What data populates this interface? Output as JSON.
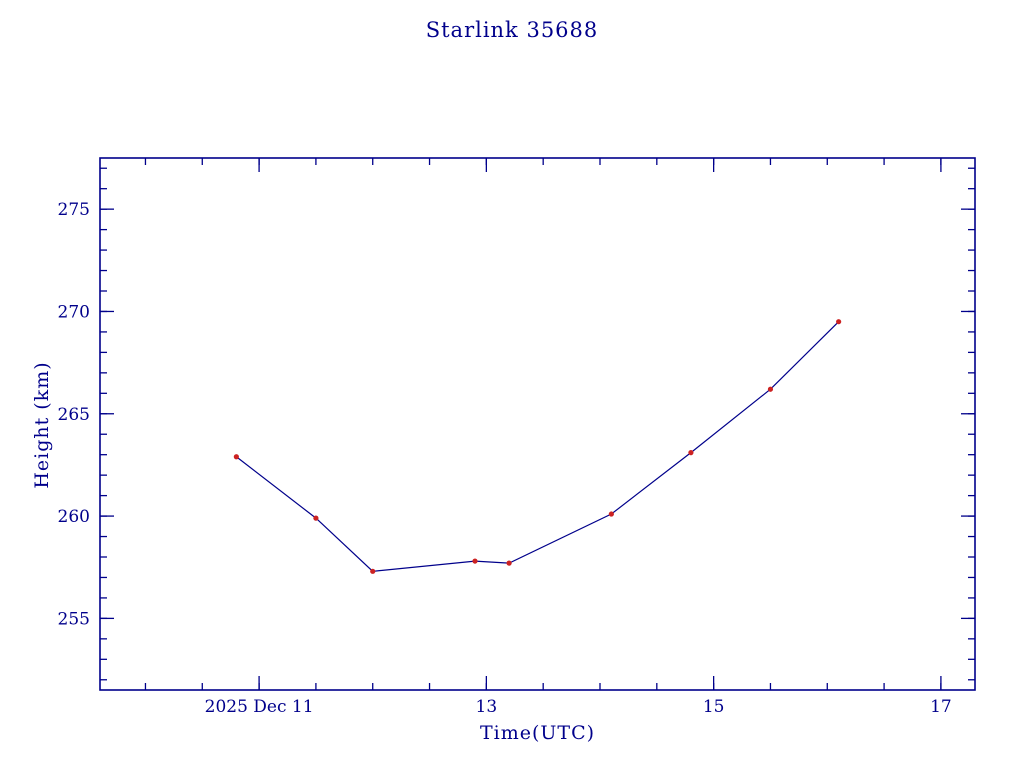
{
  "title": "Starlink 35688",
  "colors": {
    "axis": "#00008b",
    "line": "#00008b",
    "marker": "#cc2222",
    "background": "#ffffff"
  },
  "chart_data": {
    "type": "line",
    "title": "Starlink 35688",
    "xlabel": "Time(UTC)",
    "ylabel": "Height (km)",
    "x": [
      10.8,
      11.5,
      12.0,
      12.9,
      13.2,
      14.1,
      14.8,
      15.5,
      16.1
    ],
    "y": [
      262.9,
      259.9,
      257.3,
      257.8,
      257.7,
      260.1,
      263.1,
      266.2,
      269.5
    ],
    "xlim": [
      9.6,
      17.3
    ],
    "ylim": [
      251.5,
      277.5
    ],
    "xticks": [
      {
        "value": 11,
        "label": "2025 Dec 11"
      },
      {
        "value": 13,
        "label": "13"
      },
      {
        "value": 15,
        "label": "15"
      },
      {
        "value": 17,
        "label": "17"
      }
    ],
    "yticks": [
      {
        "value": 255,
        "label": "255"
      },
      {
        "value": 260,
        "label": "260"
      },
      {
        "value": 265,
        "label": "265"
      },
      {
        "value": 270,
        "label": "270"
      },
      {
        "value": 275,
        "label": "275"
      }
    ],
    "minor_x_step": 0.5,
    "minor_y_step": 1,
    "grid": false,
    "legend": false,
    "marker": "dot"
  }
}
